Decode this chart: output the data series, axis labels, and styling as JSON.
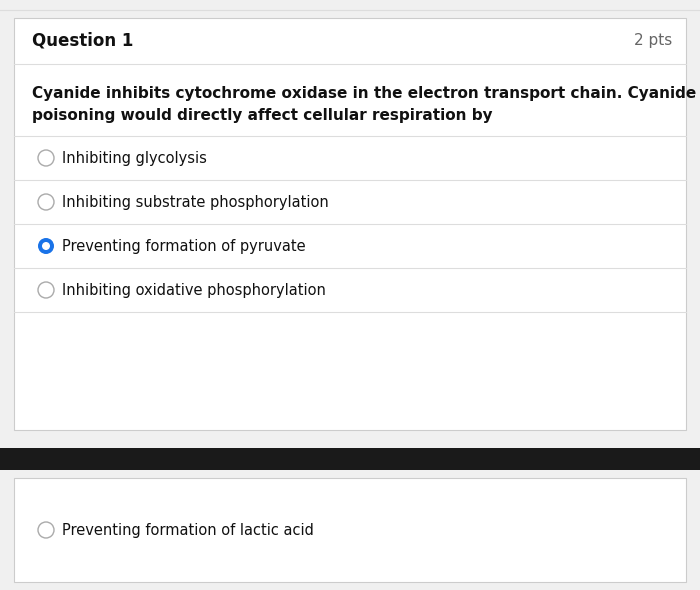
{
  "bg_color": "#f0f0f0",
  "card_bg": "#ffffff",
  "card_border": "#cccccc",
  "question_title": "Question 1",
  "pts_label": "2 pts",
  "question_text_line1": "Cyanide inhibits cytochrome oxidase in the electron transport chain. Cyanide",
  "question_text_line2": "poisoning would directly affect cellular respiration by",
  "options": [
    {
      "text": "Inhibiting glycolysis",
      "selected": false
    },
    {
      "text": "Inhibiting substrate phosphorylation",
      "selected": false
    },
    {
      "text": "Preventing formation of pyruvate",
      "selected": true
    },
    {
      "text": "Inhibiting oxidative phosphorylation",
      "selected": false
    }
  ],
  "extra_option": {
    "text": "Preventing formation of lactic acid",
    "selected": false
  },
  "divider_color": "#1a1a1a",
  "line_color": "#dddddd",
  "title_fontsize": 12,
  "pts_fontsize": 11,
  "question_fontsize": 11,
  "option_fontsize": 10.5,
  "selected_circle_color": "#1a73e8",
  "unselected_circle_color": "#aaaaaa",
  "title_font_weight": "bold",
  "question_font_weight": "bold",
  "fig_width": 7.0,
  "fig_height": 5.9
}
